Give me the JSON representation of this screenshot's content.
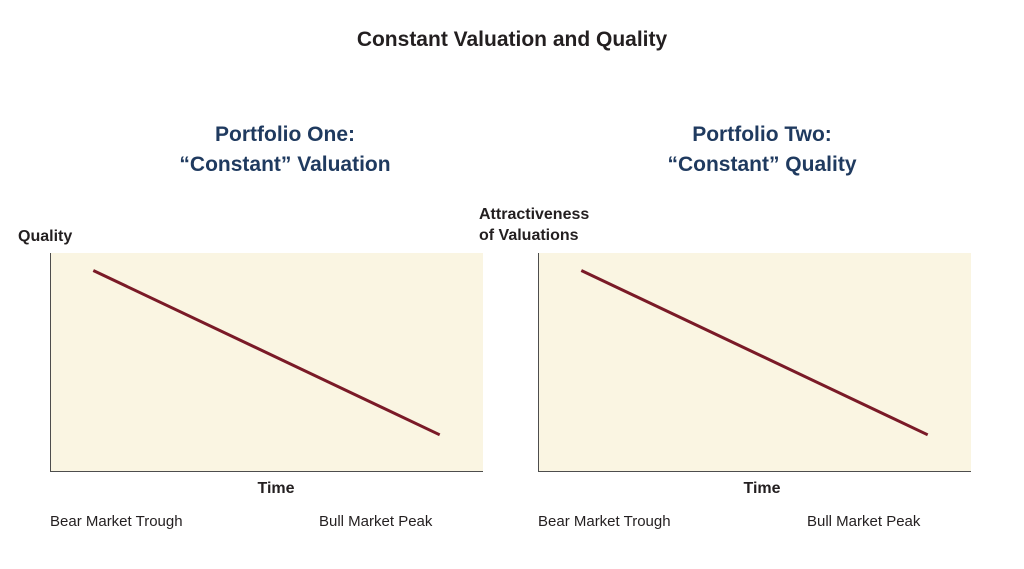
{
  "title": "Constant Valuation and Quality",
  "colors": {
    "plot_background": "#faf5e2",
    "line": "#7a1a27",
    "panel_title": "#1f3a5f",
    "axis": "#4d4d4d"
  },
  "chart_data": [
    {
      "type": "line",
      "title_lines": [
        "Portfolio One:",
        "“Constant” Valuation"
      ],
      "ylabel_lines": [
        "Quality"
      ],
      "xlabel": "Time",
      "x_end_labels": [
        "Bear Market Trough",
        "Bull Market Peak"
      ],
      "series": [
        {
          "x": [
            0.1,
            0.9
          ],
          "y": [
            0.92,
            0.17
          ]
        }
      ],
      "xlim": [
        0,
        1
      ],
      "ylim": [
        0,
        1
      ],
      "grid": false
    },
    {
      "type": "line",
      "title_lines": [
        "Portfolio Two:",
        "“Constant” Quality"
      ],
      "ylabel_lines": [
        "Attractiveness",
        "of Valuations"
      ],
      "xlabel": "Time",
      "x_end_labels": [
        "Bear Market Trough",
        "Bull Market Peak"
      ],
      "series": [
        {
          "x": [
            0.1,
            0.9
          ],
          "y": [
            0.92,
            0.17
          ]
        }
      ],
      "xlim": [
        0,
        1
      ],
      "ylim": [
        0,
        1
      ],
      "grid": false
    }
  ]
}
